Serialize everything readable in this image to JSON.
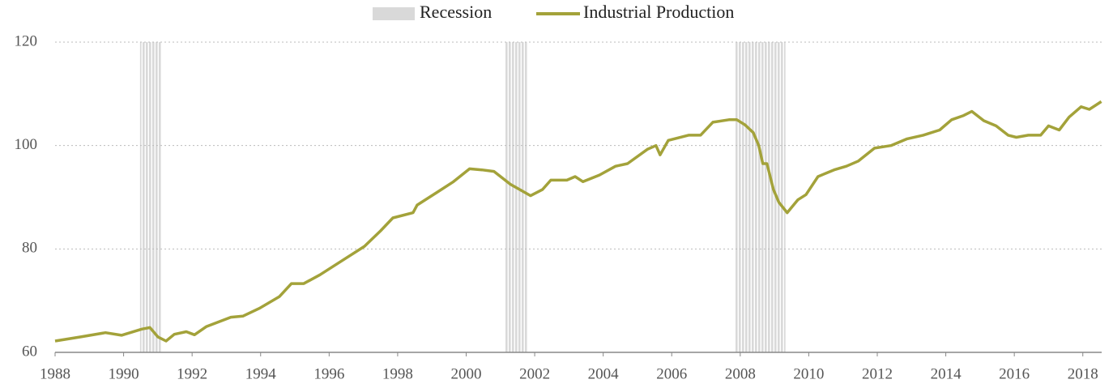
{
  "chart_data": {
    "type": "line",
    "x": [
      1988.0,
      1988.75,
      1989.47,
      1989.94,
      1990.53,
      1990.77,
      1991.0,
      1991.24,
      1991.48,
      1991.83,
      1992.07,
      1992.42,
      1993.13,
      1993.48,
      1993.96,
      1994.55,
      1994.9,
      1995.26,
      1995.73,
      1996.32,
      1997.03,
      1997.5,
      1997.86,
      1998.45,
      1998.57,
      1999.16,
      1999.63,
      2000.1,
      2000.46,
      2000.81,
      2001.29,
      2001.88,
      2002.23,
      2002.47,
      2002.94,
      2003.18,
      2003.41,
      2003.89,
      2004.36,
      2004.71,
      2005.3,
      2005.54,
      2005.66,
      2005.9,
      2006.49,
      2006.84,
      2007.2,
      2007.67,
      2007.9,
      2008.14,
      2008.38,
      2008.54,
      2008.66,
      2008.78,
      2008.97,
      2009.13,
      2009.37,
      2009.68,
      2009.92,
      2010.27,
      2010.74,
      2011.1,
      2011.45,
      2011.92,
      2012.4,
      2012.87,
      2013.34,
      2013.82,
      2014.17,
      2014.52,
      2014.76,
      2015.11,
      2015.47,
      2015.82,
      2016.06,
      2016.41,
      2016.77,
      2017.0,
      2017.31,
      2017.6,
      2017.95,
      2018.19,
      2018.54
    ],
    "series": [
      {
        "name": "Industrial Production",
        "color": "#a3a23a",
        "values": [
          62.2,
          63.0,
          63.8,
          63.3,
          64.5,
          64.8,
          63.0,
          62.2,
          63.5,
          64.0,
          63.4,
          65.0,
          66.8,
          67.0,
          68.5,
          70.8,
          73.3,
          73.3,
          75.0,
          77.5,
          80.5,
          83.5,
          86.0,
          87.0,
          88.5,
          91.0,
          93.0,
          95.5,
          95.3,
          95.0,
          92.5,
          90.3,
          91.5,
          93.3,
          93.3,
          94.0,
          93.0,
          94.3,
          96.0,
          96.5,
          99.3,
          100.0,
          98.2,
          101.0,
          102.0,
          102.0,
          104.5,
          105.0,
          105.0,
          104.0,
          102.5,
          100.0,
          96.5,
          96.5,
          91.5,
          89.0,
          87.0,
          89.5,
          90.5,
          94.0,
          95.3,
          96.0,
          97.0,
          99.5,
          100.0,
          101.3,
          102.0,
          103.0,
          105.0,
          105.8,
          106.6,
          104.8,
          103.8,
          102.0,
          101.6,
          102.0,
          102.0,
          103.8,
          103.0,
          105.5,
          107.5,
          107.0,
          108.5
        ]
      }
    ],
    "recession": {
      "name": "Recession",
      "color": "#d9d9d9",
      "ranges": [
        [
          1990.48,
          1991.12
        ],
        [
          2001.12,
          2001.78
        ],
        [
          2007.86,
          2009.32
        ]
      ]
    },
    "xlim": [
      1988,
      2018.55
    ],
    "xticks": [
      1988,
      1990,
      1992,
      1994,
      1996,
      1998,
      2000,
      2002,
      2004,
      2006,
      2008,
      2010,
      2012,
      2014,
      2016,
      2018
    ],
    "ylim": [
      60,
      120
    ],
    "yticks": [
      60,
      80,
      100,
      120
    ],
    "grid": true,
    "legend": "top"
  }
}
